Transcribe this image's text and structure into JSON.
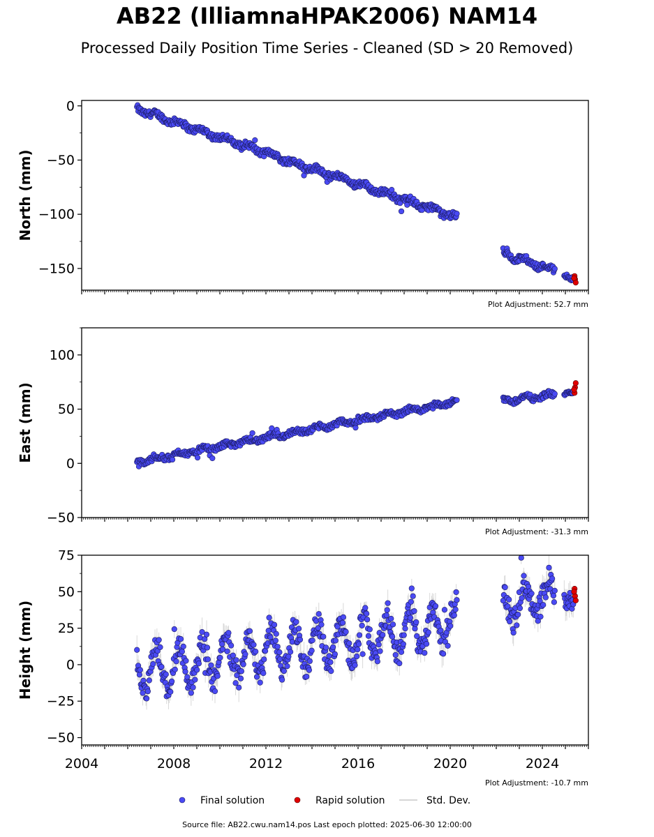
{
  "header": {
    "title": "AB22 (IlliamnaHPAK2006) NAM14",
    "subtitle": "Processed Daily Position Time Series - Cleaned (SD > 20 Removed)"
  },
  "footer": {
    "source": "Source file: AB22.cwu.nam14.pos  Last epoch plotted: 2025-06-30 12:00:00"
  },
  "legend": {
    "placement": "bottom-center",
    "items": [
      {
        "label": "Final solution",
        "color": "#4a4af4"
      },
      {
        "label": "Rapid solution",
        "color": "#e00000"
      },
      {
        "label": "Std. Dev.",
        "color": "#c8c8c8"
      }
    ]
  },
  "chart_data": [
    {
      "type": "scatter",
      "ylabel": "North (mm)",
      "adjustment": "Plot Adjustment: 52.7 mm",
      "xlim": [
        2004,
        2026
      ],
      "ylim": [
        -170,
        5
      ],
      "yticks": [
        0,
        -50,
        -100,
        -150
      ],
      "ytick_labels": [
        "0",
        "−50",
        "−100",
        "−150"
      ],
      "series": [
        {
          "name": "Final solution",
          "segments": [
            {
              "x0": 2006.4,
              "x1": 2020.3,
              "y0": -3,
              "y1": -103,
              "scatter": 3,
              "wobble": 2
            },
            {
              "x0": 2022.3,
              "x1": 2024.55,
              "y0": -136,
              "y1": -152,
              "scatter": 3,
              "wobble": 2
            },
            {
              "x0": 2024.95,
              "x1": 2025.35,
              "y0": -156,
              "y1": -160,
              "scatter": 2,
              "wobble": 0
            }
          ]
        },
        {
          "name": "Rapid solution",
          "points": [
            [
              2025.4,
              -157
            ],
            [
              2025.42,
              -160
            ],
            [
              2025.45,
              -163
            ],
            [
              2025.38,
              -159
            ]
          ]
        }
      ]
    },
    {
      "type": "scatter",
      "ylabel": "East (mm)",
      "adjustment": "Plot Adjustment: -31.3 mm",
      "xlim": [
        2004,
        2026
      ],
      "ylim": [
        -50,
        125
      ],
      "yticks": [
        -50,
        0,
        50,
        100
      ],
      "ytick_labels": [
        "−50",
        "0",
        "50",
        "100"
      ],
      "series": [
        {
          "name": "Final solution",
          "segments": [
            {
              "x0": 2006.4,
              "x1": 2020.3,
              "y0": 1,
              "y1": 57,
              "scatter": 2.5,
              "wobble": 1.5
            },
            {
              "x0": 2022.3,
              "x1": 2024.55,
              "y0": 58,
              "y1": 63,
              "scatter": 2.5,
              "wobble": 2
            },
            {
              "x0": 2024.95,
              "x1": 2025.35,
              "y0": 64,
              "y1": 66,
              "scatter": 1.5,
              "wobble": 0
            }
          ]
        },
        {
          "name": "Rapid solution",
          "points": [
            [
              2025.4,
              65
            ],
            [
              2025.42,
              70
            ],
            [
              2025.45,
              74
            ],
            [
              2025.38,
              68
            ]
          ]
        }
      ]
    },
    {
      "type": "scatter",
      "ylabel": "Height (mm)",
      "adjustment": "Plot Adjustment: -10.7 mm",
      "xlim": [
        2004,
        2026
      ],
      "ylim": [
        -55,
        75
      ],
      "yticks": [
        -50,
        -25,
        0,
        25,
        50,
        75
      ],
      "ytick_labels": [
        "−50",
        "−25",
        "0",
        "25",
        "50",
        "75"
      ],
      "xticks": [
        2004,
        2008,
        2012,
        2016,
        2020,
        2024
      ],
      "series": [
        {
          "name": "Final solution",
          "segments": [
            {
              "x0": 2006.4,
              "x1": 2020.3,
              "y0": -5,
              "y1": 28,
              "scatter": 8,
              "wobble": 14
            },
            {
              "x0": 2022.3,
              "x1": 2024.55,
              "y0": 40,
              "y1": 48,
              "scatter": 8,
              "wobble": 12
            },
            {
              "x0": 2024.95,
              "x1": 2025.35,
              "y0": 42,
              "y1": 44,
              "scatter": 6,
              "wobble": 0
            }
          ]
        },
        {
          "name": "Rapid solution",
          "points": [
            [
              2025.4,
              52
            ],
            [
              2025.42,
              47
            ],
            [
              2025.45,
              44
            ],
            [
              2025.38,
              50
            ]
          ]
        }
      ]
    }
  ]
}
